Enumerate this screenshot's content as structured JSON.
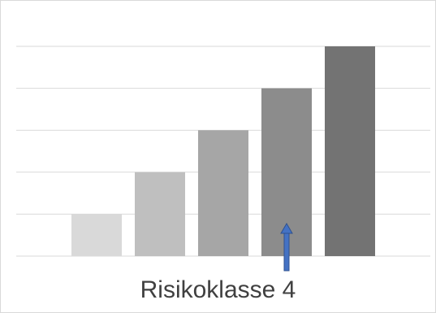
{
  "chart_data": {
    "type": "bar",
    "categories": [
      "",
      "",
      "",
      "",
      ""
    ],
    "values": [
      1,
      2,
      3,
      4,
      5
    ],
    "ylim": [
      0,
      5
    ],
    "grid": true,
    "bar_colors": [
      "#d9d9d9",
      "#bfbfbf",
      "#a6a6a6",
      "#8c8c8c",
      "#737373"
    ],
    "gridline_color": "#d9d9d9",
    "highlight_index": 3,
    "arrow_color": "#4472c4",
    "caption": "Risikoklasse 4"
  }
}
